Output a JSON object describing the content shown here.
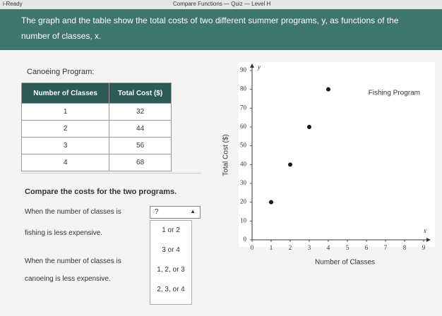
{
  "top_bar": {
    "app": "i-Ready",
    "title": "Compare Functions — Quiz — Level H"
  },
  "question": "The graph and the table show the total costs of two different summer programs, y, as functions of the number of classes, x.",
  "canoeing": {
    "label": "Canoeing Program:",
    "table": {
      "header": [
        "Number of Classes",
        "Total Cost ($)"
      ],
      "rows": [
        [
          1,
          32
        ],
        [
          2,
          44
        ],
        [
          3,
          56
        ],
        [
          4,
          68
        ]
      ]
    }
  },
  "prompt": "Compare the costs for the two programs.",
  "statement_1": {
    "before": "When the number of classes is",
    "placeholder": "?",
    "after": "fishing is less expensive."
  },
  "statement_2": {
    "before": "When the number of classes is",
    "after": "canoeing is less expensive."
  },
  "dropdown_options": [
    "1 or 2",
    "3 or 4",
    "1, 2, or 3",
    "2, 3, or 4"
  ],
  "chart_data": {
    "type": "scatter",
    "x_label": "Number of Classes",
    "y_label": "Total Cost ($)",
    "x_var": "x",
    "y_var": "y",
    "x": [
      1,
      2,
      3,
      4
    ],
    "series": [
      {
        "name": "Fishing Program",
        "color": "#1a1a1a",
        "values": [
          20,
          40,
          60,
          80
        ]
      }
    ],
    "xlim": [
      0,
      9
    ],
    "ylim": [
      0,
      90
    ],
    "xticks": [
      0,
      1,
      2,
      3,
      4,
      5,
      6,
      7,
      8,
      9
    ],
    "yticks": [
      0,
      10,
      20,
      30,
      40,
      50,
      60,
      70,
      80,
      90
    ],
    "grid": false
  }
}
